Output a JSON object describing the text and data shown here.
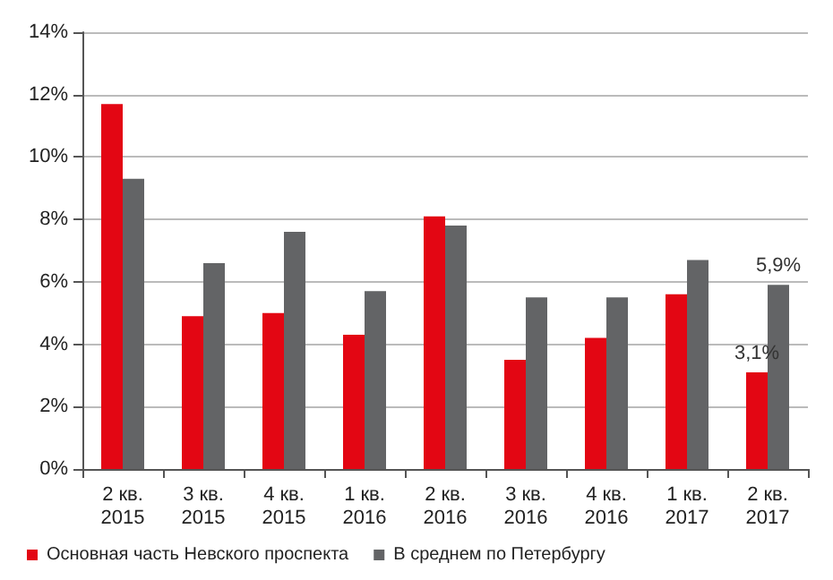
{
  "chart_data": {
    "type": "bar",
    "categories": [
      "2 кв. 2015",
      "3 кв. 2015",
      "4 кв. 2015",
      "1 кв. 2016",
      "2 кв. 2016",
      "3 кв. 2016",
      "4 кв. 2016",
      "1 кв. 2017",
      "2 кв. 2017"
    ],
    "series": [
      {
        "name": "Основная часть Невского проспекта",
        "color": "#e30613",
        "values": [
          11.7,
          4.9,
          5.0,
          4.3,
          8.1,
          3.5,
          4.2,
          5.6,
          3.1
        ],
        "value_labels": [
          null,
          null,
          null,
          null,
          null,
          null,
          null,
          null,
          "3,1%"
        ]
      },
      {
        "name": "В среднем по Петербургу",
        "color": "#636466",
        "values": [
          9.3,
          6.6,
          7.6,
          5.7,
          7.8,
          5.5,
          5.5,
          6.7,
          5.9
        ],
        "value_labels": [
          null,
          null,
          null,
          null,
          null,
          null,
          null,
          null,
          "5,9%"
        ]
      }
    ],
    "ylim": [
      0,
      14
    ],
    "yticks": [
      {
        "value": 0,
        "label": "0%"
      },
      {
        "value": 2,
        "label": "2%"
      },
      {
        "value": 4,
        "label": "4%"
      },
      {
        "value": 6,
        "label": "6%"
      },
      {
        "value": 8,
        "label": "8%"
      },
      {
        "value": 10,
        "label": "10%"
      },
      {
        "value": 12,
        "label": "12%"
      },
      {
        "value": 14,
        "label": "14%"
      }
    ],
    "grid": "y",
    "legend": "bottom left"
  }
}
